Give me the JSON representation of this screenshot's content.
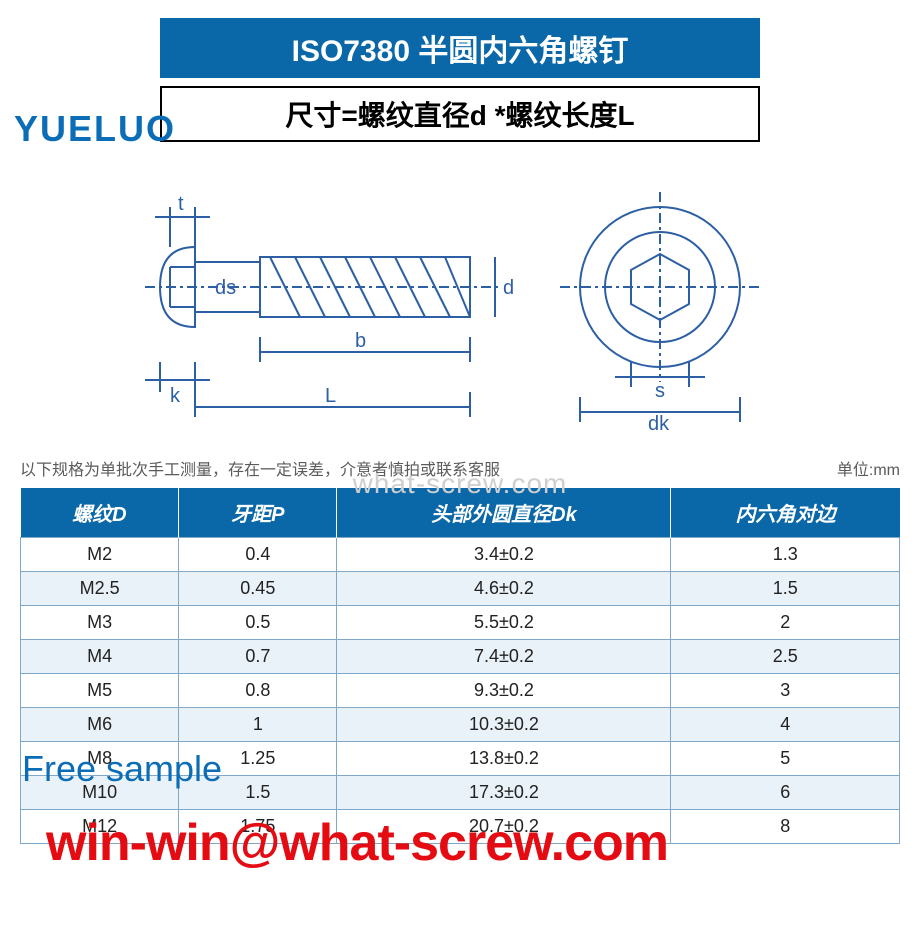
{
  "colors": {
    "brand_blue": "#0a68a8",
    "title_bg": "#0a68a8",
    "logo_blue": "#0b6db5",
    "table_header_bg": "#0a68a8",
    "table_border": "#7fa8c9",
    "table_row_even": "#eaf2f9",
    "table_row_odd": "#ffffff",
    "diagram_line": "#2d5fa5",
    "watermark_gray": "#cfcfcf",
    "note_gray": "#5b5b5b",
    "free_sample_blue": "#0b6db5",
    "email_red": "#e40b12"
  },
  "title": "ISO7380 半圆内六角螺钉",
  "title_fontsize": 30,
  "subtitle": "尺寸=螺纹直径d *螺纹长度L",
  "subtitle_fontsize": 28,
  "logo_text": "YUELUO",
  "diagram": {
    "labels": {
      "t": "t",
      "ds": "ds",
      "b": "b",
      "k": "k",
      "L": "L",
      "d": "d",
      "s": "s",
      "dk": "dk"
    },
    "line_color": "#2d5fa5",
    "line_width": 2
  },
  "center_watermark": "what-screw.com",
  "note_left": "以下规格为单批次手工测量，存在一定误差，介意者慎拍或联系客服",
  "note_right": "单位:mm",
  "table": {
    "header_bg": "#0a68a8",
    "col_widths": [
      "18%",
      "18%",
      "38%",
      "26%"
    ],
    "columns": [
      "螺纹D",
      "牙距P",
      "头部外圆直径Dk",
      "内六角对边"
    ],
    "rows": [
      [
        "M2",
        "0.4",
        "3.4±0.2",
        "1.3"
      ],
      [
        "M2.5",
        "0.45",
        "4.6±0.2",
        "1.5"
      ],
      [
        "M3",
        "0.5",
        "5.5±0.2",
        "2"
      ],
      [
        "M4",
        "0.7",
        "7.4±0.2",
        "2.5"
      ],
      [
        "M5",
        "0.8",
        "9.3±0.2",
        "3"
      ],
      [
        "M6",
        "1",
        "10.3±0.2",
        "4"
      ],
      [
        "M8",
        "1.25",
        "13.8±0.2",
        "5"
      ],
      [
        "M10",
        "1.5",
        "17.3±0.2",
        "6"
      ],
      [
        "M12",
        "1.75",
        "20.7±0.2",
        "8"
      ]
    ]
  },
  "free_sample_text": "Free sample",
  "email_text": "win-win@what-screw.com"
}
